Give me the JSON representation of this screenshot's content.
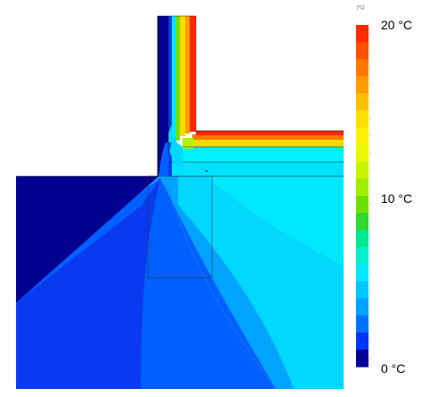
{
  "colors": {
    "inner_warm": "#ff2a00",
    "inner_orange": "#ff7a00",
    "yellow": "#ffd800",
    "light_green": "#b6f200",
    "cyan_bright": "#00f0ff",
    "cyan": "#00d8ff",
    "sky_blue": "#00aaff",
    "mid_blue": "#0060ff",
    "royal_blue": "#0a2cf0",
    "navy": "#00006e",
    "navy_alt": "#000090"
  },
  "legend": {
    "unit_label": "[°C]",
    "label_top": "20 °C",
    "label_mid": "10 °C",
    "label_bottom": "0 °C",
    "bands": [
      "#ff2a00",
      "#ff5000",
      "#ff7800",
      "#ff9c00",
      "#ffc000",
      "#ffe000",
      "#fff000",
      "#e8f800",
      "#c8f400",
      "#a0ee00",
      "#6ee000",
      "#30d830",
      "#00e890",
      "#00f0d0",
      "#00e8ff",
      "#00c8ff",
      "#00a4ff",
      "#0070ff",
      "#0034f8",
      "#000094"
    ]
  }
}
